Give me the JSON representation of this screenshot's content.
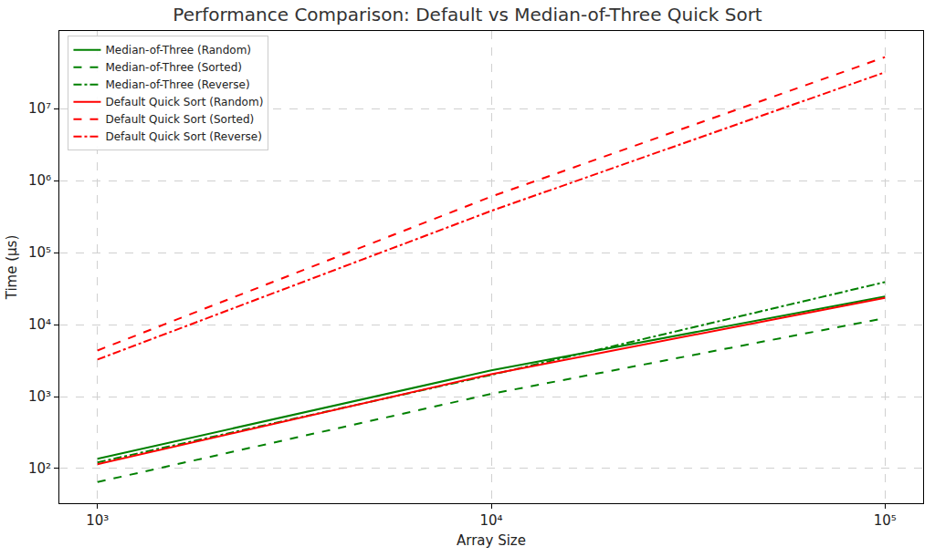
{
  "chart_data": {
    "type": "line",
    "title": "Performance Comparison: Default vs Median-of-Three Quick Sort",
    "x_label": "Array Size",
    "y_label": "Time (µs)",
    "log": true,
    "grid": true,
    "legend": "upper left",
    "x": [
      1000,
      10000,
      100000
    ],
    "xlim": [
      800,
      125000
    ],
    "xticks": [
      {
        "value": 1000,
        "label": "10³"
      },
      {
        "value": 10000,
        "label": "10⁴"
      },
      {
        "value": 100000,
        "label": "10⁵"
      }
    ],
    "ylim": [
      33,
      120000000
    ],
    "yticks": [
      {
        "value": 100,
        "label": "10²"
      },
      {
        "value": 1000,
        "label": "10³"
      },
      {
        "value": 10000,
        "label": "10⁴"
      },
      {
        "value": 100000,
        "label": "10⁵"
      },
      {
        "value": 1000000,
        "label": "10⁶"
      },
      {
        "value": 10000000,
        "label": "10⁷"
      }
    ],
    "series": [
      {
        "name": "Median-of-Three (Random)",
        "color": "#008000",
        "line_style": "solid",
        "values": [
          137,
          2310,
          24500
        ]
      },
      {
        "name": "Median-of-Three (Sorted)",
        "color": "#008000",
        "line_style": "dashed",
        "values": [
          65,
          1090,
          12300
        ]
      },
      {
        "name": "Median-of-Three (Reverse)",
        "color": "#008000",
        "line_style": "dashdot",
        "values": [
          122,
          2000,
          39000
        ]
      },
      {
        "name": "Default Quick Sort (Random)",
        "color": "#ff0000",
        "line_style": "solid",
        "values": [
          115,
          2050,
          23500
        ]
      },
      {
        "name": "Default Quick Sort (Sorted)",
        "color": "#ff0000",
        "line_style": "dashed",
        "values": [
          4370,
          600000,
          52000000
        ]
      },
      {
        "name": "Default Quick Sort (Reverse)",
        "color": "#ff0000",
        "line_style": "dashdot",
        "values": [
          3270,
          380000,
          32000000
        ]
      }
    ]
  }
}
